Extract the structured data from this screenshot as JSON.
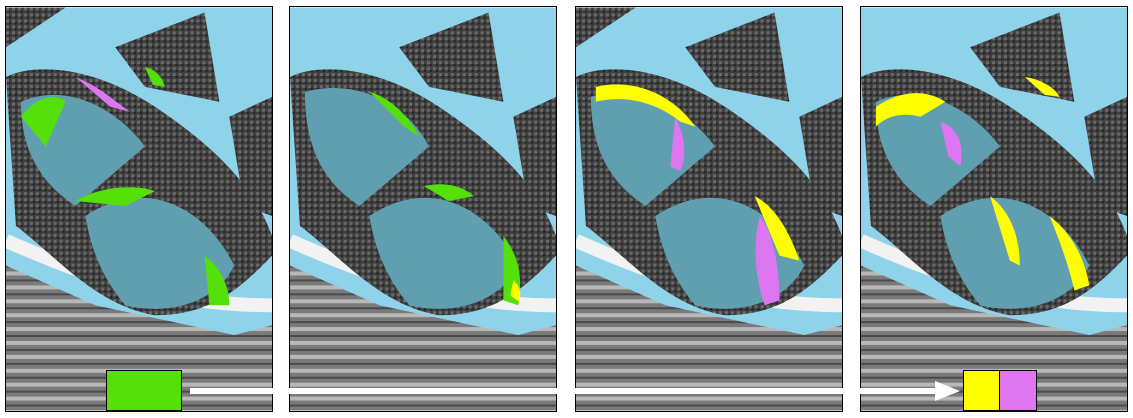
{
  "panels": [
    {
      "name": "panel-1",
      "overlay": "green",
      "overlay_secondary": "magenta"
    },
    {
      "name": "panel-2",
      "overlay": "green",
      "overlay_secondary": "yellow"
    },
    {
      "name": "panel-3",
      "overlay": "yellow",
      "overlay_secondary": "magenta"
    },
    {
      "name": "panel-4",
      "overlay": "yellow",
      "overlay_secondary": "magenta"
    }
  ],
  "colors": {
    "water": "#8fd3ea",
    "flooded": "#5f9fb0",
    "land_dark": "#3c3c3c",
    "land_light": "#cfcfcf",
    "green": "#55e00a",
    "yellow": "#ffff00",
    "magenta": "#de76f2",
    "road": "#f2f2f2"
  },
  "legend": {
    "left_swatch_color": "#55e00a",
    "right_swatch_colors": [
      "#ffff00",
      "#de76f2"
    ],
    "arrow_color": "#ffffff"
  }
}
